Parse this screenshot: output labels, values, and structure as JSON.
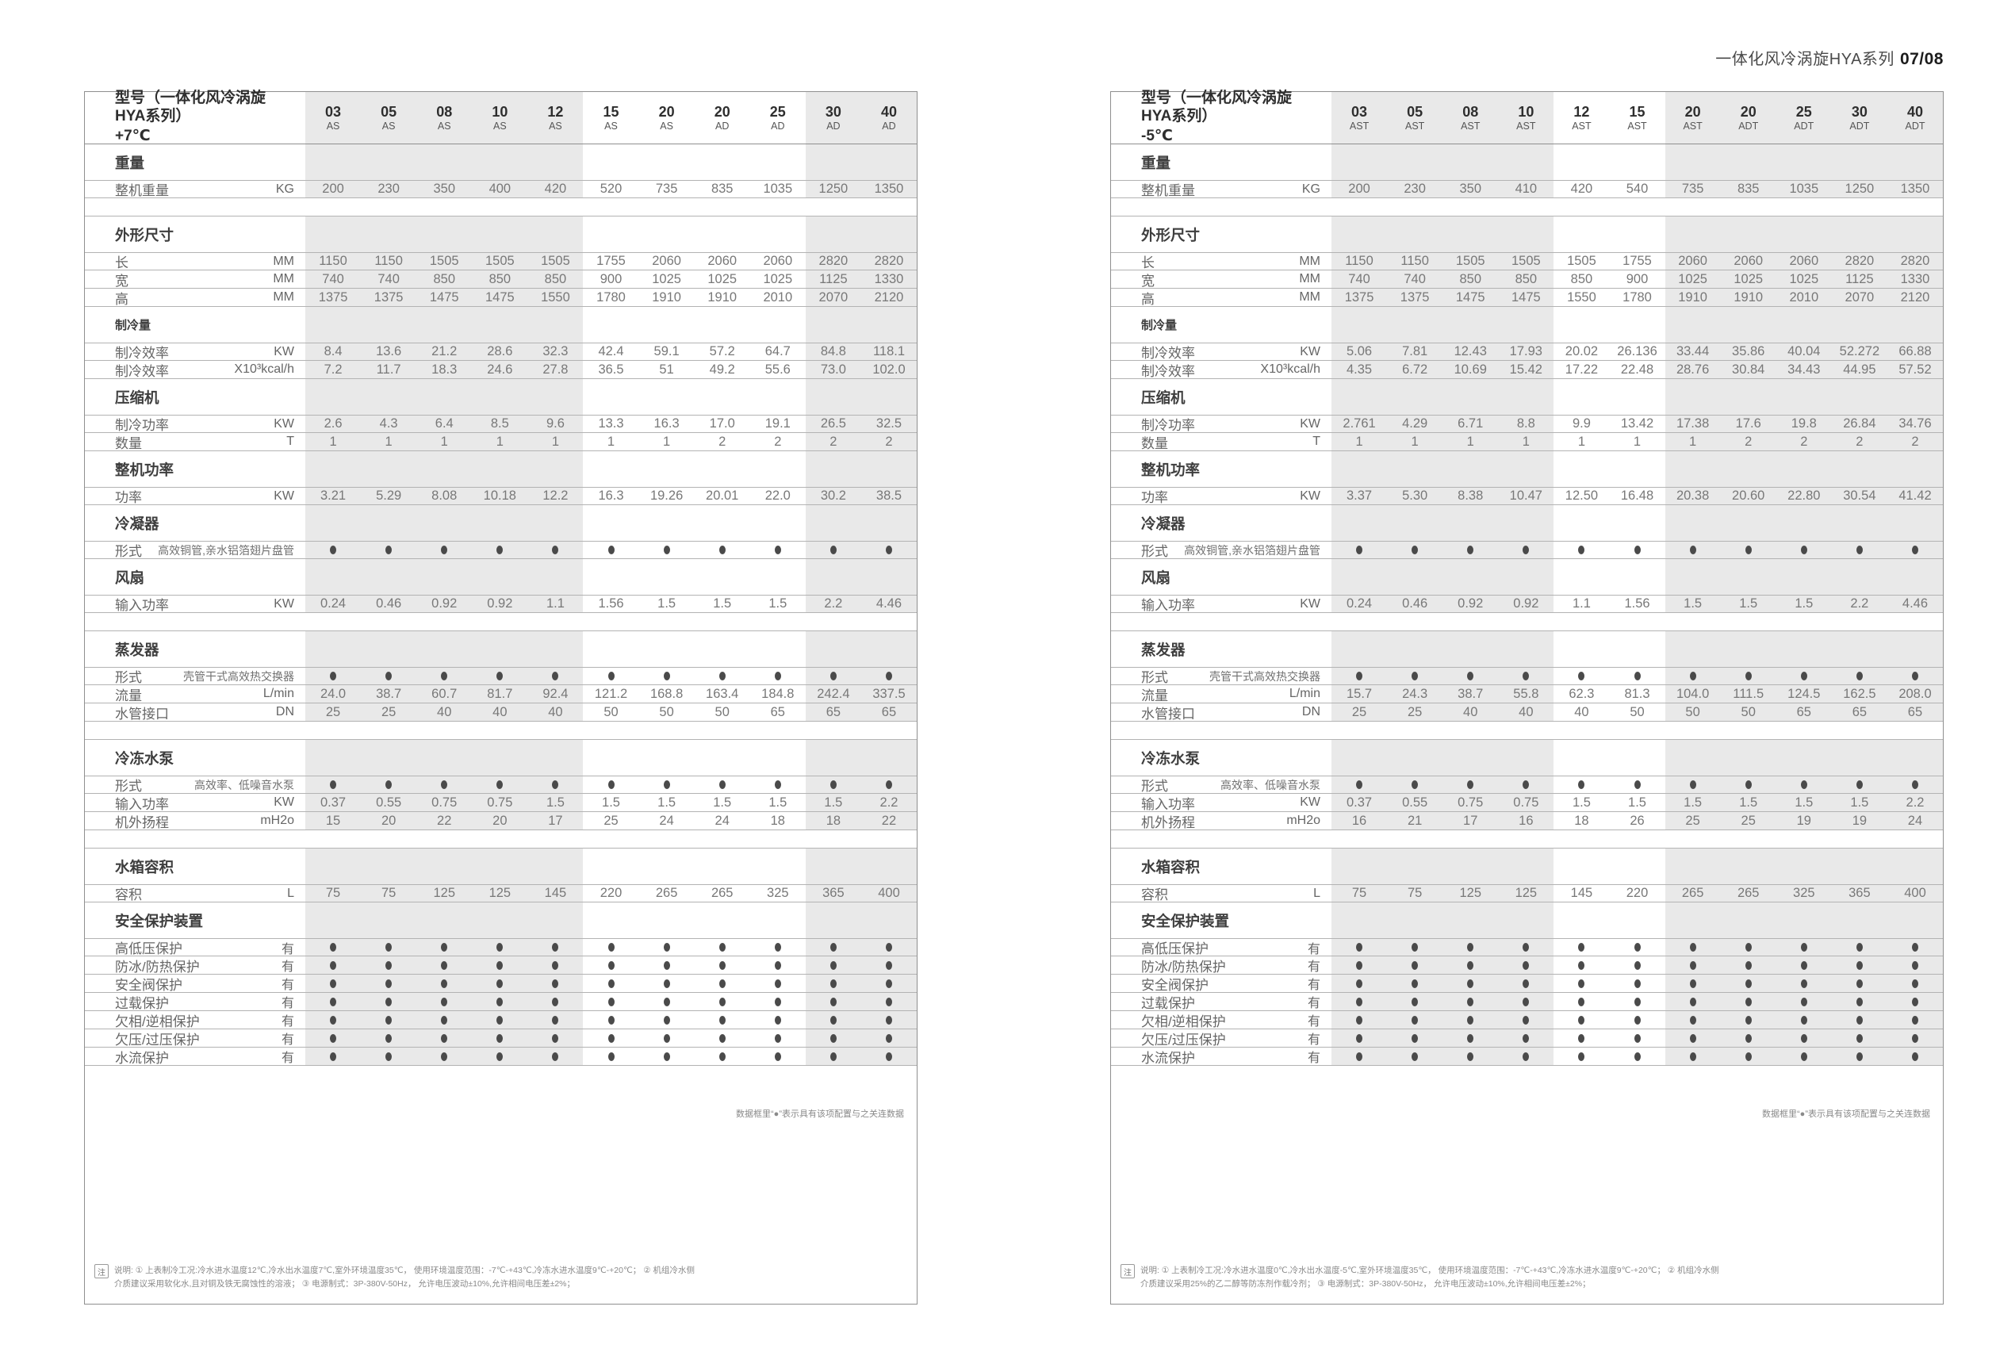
{
  "page": {
    "title_series": "一体化风冷涡旋HYA系列",
    "title_page": "07/08"
  },
  "tables": [
    {
      "id": "plus7",
      "title": "型号（一体化风冷涡旋HYA系列）",
      "temp": "+7℃",
      "columns": [
        {
          "size": "03",
          "type": "AS"
        },
        {
          "size": "05",
          "type": "AS"
        },
        {
          "size": "08",
          "type": "AS"
        },
        {
          "size": "10",
          "type": "AS"
        },
        {
          "size": "12",
          "type": "AS"
        },
        {
          "size": "15",
          "type": "AS"
        },
        {
          "size": "20",
          "type": "AS"
        },
        {
          "size": "20",
          "type": "AD"
        },
        {
          "size": "25",
          "type": "AD"
        },
        {
          "size": "30",
          "type": "AD"
        },
        {
          "size": "40",
          "type": "AD"
        }
      ],
      "band_columns": [
        0,
        1,
        2,
        3,
        4,
        9,
        10
      ],
      "rows": [
        {
          "type": "section",
          "label": "重量"
        },
        {
          "type": "value",
          "label": "整机重量",
          "unit": "KG",
          "values": [
            "200",
            "230",
            "350",
            "400",
            "420",
            "520",
            "735",
            "835",
            "1035",
            "1250",
            "1350"
          ]
        },
        {
          "type": "gap"
        },
        {
          "type": "section",
          "label": "外形尺寸"
        },
        {
          "type": "value",
          "label": "长",
          "unit": "MM",
          "values": [
            "1150",
            "1150",
            "1505",
            "1505",
            "1505",
            "1755",
            "2060",
            "2060",
            "2060",
            "2820",
            "2820"
          ]
        },
        {
          "type": "value",
          "label": "宽",
          "unit": "MM",
          "values": [
            "740",
            "740",
            "850",
            "850",
            "850",
            "900",
            "1025",
            "1025",
            "1025",
            "1125",
            "1330"
          ]
        },
        {
          "type": "value",
          "label": "高",
          "unit": "MM",
          "values": [
            "1375",
            "1375",
            "1475",
            "1475",
            "1550",
            "1780",
            "1910",
            "1910",
            "2010",
            "2070",
            "2120"
          ]
        },
        {
          "type": "section",
          "label": "制冷量",
          "small": true
        },
        {
          "type": "value",
          "label": "制冷效率",
          "unit": "KW",
          "values": [
            "8.4",
            "13.6",
            "21.2",
            "28.6",
            "32.3",
            "42.4",
            "59.1",
            "57.2",
            "64.7",
            "84.8",
            "118.1"
          ]
        },
        {
          "type": "value",
          "label": "制冷效率",
          "unit": "X10³kcal/h",
          "values": [
            "7.2",
            "11.7",
            "18.3",
            "24.6",
            "27.8",
            "36.5",
            "51",
            "49.2",
            "55.6",
            "73.0",
            "102.0"
          ]
        },
        {
          "type": "section",
          "label": "压缩机"
        },
        {
          "type": "value",
          "label": "制冷功率",
          "unit": "KW",
          "values": [
            "2.6",
            "4.3",
            "6.4",
            "8.5",
            "9.6",
            "13.3",
            "16.3",
            "17.0",
            "19.1",
            "26.5",
            "32.5"
          ]
        },
        {
          "type": "value",
          "label": "数量",
          "unit": "T",
          "values": [
            "1",
            "1",
            "1",
            "1",
            "1",
            "1",
            "1",
            "2",
            "2",
            "2",
            "2"
          ]
        },
        {
          "type": "section",
          "label": "整机功率"
        },
        {
          "type": "value",
          "label": "功率",
          "unit": "KW",
          "values": [
            "3.21",
            "5.29",
            "8.08",
            "10.18",
            "12.2",
            "16.3",
            "19.26",
            "20.01",
            "22.0",
            "30.2",
            "38.5"
          ]
        },
        {
          "type": "section",
          "label": "冷凝器"
        },
        {
          "type": "dots",
          "label": "形式",
          "unit": "高效铜管,亲水铝箔翅片盘管",
          "small_unit": true
        },
        {
          "type": "section",
          "label": "风扇"
        },
        {
          "type": "value",
          "label": "输入功率",
          "unit": "KW",
          "values": [
            "0.24",
            "0.46",
            "0.92",
            "0.92",
            "1.1",
            "1.56",
            "1.5",
            "1.5",
            "1.5",
            "2.2",
            "4.46"
          ]
        },
        {
          "type": "gap"
        },
        {
          "type": "section",
          "label": "蒸发器"
        },
        {
          "type": "dots",
          "label": "形式",
          "unit": "壳管干式高效热交换器",
          "small_unit": true
        },
        {
          "type": "value",
          "label": "流量",
          "unit": "L/min",
          "values": [
            "24.0",
            "38.7",
            "60.7",
            "81.7",
            "92.4",
            "121.2",
            "168.8",
            "163.4",
            "184.8",
            "242.4",
            "337.5"
          ]
        },
        {
          "type": "value",
          "label": "水管接口",
          "unit": "DN",
          "values": [
            "25",
            "25",
            "40",
            "40",
            "40",
            "50",
            "50",
            "50",
            "65",
            "65",
            "65"
          ]
        },
        {
          "type": "gap"
        },
        {
          "type": "section",
          "label": "冷冻水泵"
        },
        {
          "type": "dots",
          "label": "形式",
          "unit": "高效率、低噪音水泵",
          "small_unit": true
        },
        {
          "type": "value",
          "label": "输入功率",
          "unit": "KW",
          "values": [
            "0.37",
            "0.55",
            "0.75",
            "0.75",
            "1.5",
            "1.5",
            "1.5",
            "1.5",
            "1.5",
            "1.5",
            "2.2"
          ]
        },
        {
          "type": "value",
          "label": "机外扬程",
          "unit": "mH2o",
          "values": [
            "15",
            "20",
            "22",
            "20",
            "17",
            "25",
            "24",
            "24",
            "18",
            "18",
            "22"
          ]
        },
        {
          "type": "gap"
        },
        {
          "type": "section",
          "label": "水箱容积"
        },
        {
          "type": "value",
          "label": "容积",
          "unit": "L",
          "values": [
            "75",
            "75",
            "125",
            "125",
            "145",
            "220",
            "265",
            "265",
            "325",
            "365",
            "400"
          ]
        },
        {
          "type": "section",
          "label": "安全保护装置"
        },
        {
          "type": "dots",
          "label": "高低压保护",
          "unit": "有"
        },
        {
          "type": "dots",
          "label": "防冰/防热保护",
          "unit": "有"
        },
        {
          "type": "dots",
          "label": "安全阀保护",
          "unit": "有"
        },
        {
          "type": "dots",
          "label": "过载保护",
          "unit": "有"
        },
        {
          "type": "dots",
          "label": "欠相/逆相保护",
          "unit": "有"
        },
        {
          "type": "dots",
          "label": "欠压/过压保护",
          "unit": "有"
        },
        {
          "type": "dots",
          "label": "水流保护",
          "unit": "有"
        }
      ],
      "note": "数据框里“●”表示具有该项配置与之关连数据",
      "note_icon": "注",
      "footnote_lines": [
        "说明: ① 上表制冷工况:冷水进水温度12℃,冷水出水温度7℃,室外环境温度35℃， 使用环境温度范围：-7℃-+43℃,冷冻水进水温度9℃-+20℃； ② 机组冷水侧",
        "介质建议采用软化水,且对铜及铁无腐蚀性的溶液； ③ 电源制式：3P-380V-50Hz， 允许电压波动±10%,允许相间电压差±2%；"
      ]
    },
    {
      "id": "minus5",
      "title": "型号（一体化风冷涡旋HYA系列）",
      "temp": "-5℃",
      "columns": [
        {
          "size": "03",
          "type": "AST"
        },
        {
          "size": "05",
          "type": "AST"
        },
        {
          "size": "08",
          "type": "AST"
        },
        {
          "size": "10",
          "type": "AST"
        },
        {
          "size": "12",
          "type": "AST"
        },
        {
          "size": "15",
          "type": "AST"
        },
        {
          "size": "20",
          "type": "AST"
        },
        {
          "size": "20",
          "type": "ADT"
        },
        {
          "size": "25",
          "type": "ADT"
        },
        {
          "size": "30",
          "type": "ADT"
        },
        {
          "size": "40",
          "type": "ADT"
        }
      ],
      "band_columns": [
        0,
        1,
        2,
        3,
        6,
        7,
        8,
        9,
        10
      ],
      "rows": [
        {
          "type": "section",
          "label": "重量"
        },
        {
          "type": "value",
          "label": "整机重量",
          "unit": "KG",
          "values": [
            "200",
            "230",
            "350",
            "410",
            "420",
            "540",
            "735",
            "835",
            "1035",
            "1250",
            "1350"
          ]
        },
        {
          "type": "gap"
        },
        {
          "type": "section",
          "label": "外形尺寸"
        },
        {
          "type": "value",
          "label": "长",
          "unit": "MM",
          "values": [
            "1150",
            "1150",
            "1505",
            "1505",
            "1505",
            "1755",
            "2060",
            "2060",
            "2060",
            "2820",
            "2820"
          ]
        },
        {
          "type": "value",
          "label": "宽",
          "unit": "MM",
          "values": [
            "740",
            "740",
            "850",
            "850",
            "850",
            "900",
            "1025",
            "1025",
            "1025",
            "1125",
            "1330"
          ]
        },
        {
          "type": "value",
          "label": "高",
          "unit": "MM",
          "values": [
            "1375",
            "1375",
            "1475",
            "1475",
            "1550",
            "1780",
            "1910",
            "1910",
            "2010",
            "2070",
            "2120"
          ]
        },
        {
          "type": "section",
          "label": "制冷量",
          "small": true
        },
        {
          "type": "value",
          "label": "制冷效率",
          "unit": "KW",
          "values": [
            "5.06",
            "7.81",
            "12.43",
            "17.93",
            "20.02",
            "26.136",
            "33.44",
            "35.86",
            "40.04",
            "52.272",
            "66.88"
          ]
        },
        {
          "type": "value",
          "label": "制冷效率",
          "unit": "X10³kcal/h",
          "values": [
            "4.35",
            "6.72",
            "10.69",
            "15.42",
            "17.22",
            "22.48",
            "28.76",
            "30.84",
            "34.43",
            "44.95",
            "57.52"
          ]
        },
        {
          "type": "section",
          "label": "压缩机"
        },
        {
          "type": "value",
          "label": "制冷功率",
          "unit": "KW",
          "values": [
            "2.761",
            "4.29",
            "6.71",
            "8.8",
            "9.9",
            "13.42",
            "17.38",
            "17.6",
            "19.8",
            "26.84",
            "34.76"
          ]
        },
        {
          "type": "value",
          "label": "数量",
          "unit": "T",
          "values": [
            "1",
            "1",
            "1",
            "1",
            "1",
            "1",
            "1",
            "2",
            "2",
            "2",
            "2"
          ]
        },
        {
          "type": "section",
          "label": "整机功率"
        },
        {
          "type": "value",
          "label": "功率",
          "unit": "KW",
          "values": [
            "3.37",
            "5.30",
            "8.38",
            "10.47",
            "12.50",
            "16.48",
            "20.38",
            "20.60",
            "22.80",
            "30.54",
            "41.42"
          ]
        },
        {
          "type": "section",
          "label": "冷凝器"
        },
        {
          "type": "dots",
          "label": "形式",
          "unit": "高效铜管,亲水铝箔翅片盘管",
          "small_unit": true
        },
        {
          "type": "section",
          "label": "风扇"
        },
        {
          "type": "value",
          "label": "输入功率",
          "unit": "KW",
          "values": [
            "0.24",
            "0.46",
            "0.92",
            "0.92",
            "1.1",
            "1.56",
            "1.5",
            "1.5",
            "1.5",
            "2.2",
            "4.46"
          ]
        },
        {
          "type": "gap"
        },
        {
          "type": "section",
          "label": "蒸发器"
        },
        {
          "type": "dots",
          "label": "形式",
          "unit": "壳管干式高效热交换器",
          "small_unit": true
        },
        {
          "type": "value",
          "label": "流量",
          "unit": "L/min",
          "values": [
            "15.7",
            "24.3",
            "38.7",
            "55.8",
            "62.3",
            "81.3",
            "104.0",
            "111.5",
            "124.5",
            "162.5",
            "208.0"
          ]
        },
        {
          "type": "value",
          "label": "水管接口",
          "unit": "DN",
          "values": [
            "25",
            "25",
            "40",
            "40",
            "40",
            "50",
            "50",
            "50",
            "65",
            "65",
            "65"
          ]
        },
        {
          "type": "gap"
        },
        {
          "type": "section",
          "label": "冷冻水泵"
        },
        {
          "type": "dots",
          "label": "形式",
          "unit": "高效率、低噪音水泵",
          "small_unit": true
        },
        {
          "type": "value",
          "label": "输入功率",
          "unit": "KW",
          "values": [
            "0.37",
            "0.55",
            "0.75",
            "0.75",
            "1.5",
            "1.5",
            "1.5",
            "1.5",
            "1.5",
            "1.5",
            "2.2"
          ]
        },
        {
          "type": "value",
          "label": "机外扬程",
          "unit": "mH2o",
          "values": [
            "16",
            "21",
            "17",
            "16",
            "18",
            "26",
            "25",
            "25",
            "19",
            "19",
            "24"
          ]
        },
        {
          "type": "gap"
        },
        {
          "type": "section",
          "label": "水箱容积"
        },
        {
          "type": "value",
          "label": "容积",
          "unit": "L",
          "values": [
            "75",
            "75",
            "125",
            "125",
            "145",
            "220",
            "265",
            "265",
            "325",
            "365",
            "400"
          ]
        },
        {
          "type": "section",
          "label": "安全保护装置"
        },
        {
          "type": "dots",
          "label": "高低压保护",
          "unit": "有"
        },
        {
          "type": "dots",
          "label": "防冰/防热保护",
          "unit": "有"
        },
        {
          "type": "dots",
          "label": "安全阀保护",
          "unit": "有"
        },
        {
          "type": "dots",
          "label": "过载保护",
          "unit": "有"
        },
        {
          "type": "dots",
          "label": "欠相/逆相保护",
          "unit": "有"
        },
        {
          "type": "dots",
          "label": "欠压/过压保护",
          "unit": "有"
        },
        {
          "type": "dots",
          "label": "水流保护",
          "unit": "有"
        }
      ],
      "note": "数据框里“●”表示具有该项配置与之关连数据",
      "note_icon": "注",
      "footnote_lines": [
        "说明: ① 上表制冷工况:冷水进水温度0℃,冷水出水温度-5℃,室外环境温度35℃， 使用环境温度范围：-7℃-+43℃,冷冻水进水温度9℃-+20℃； ② 机组冷水侧",
        "介质建议采用25%的乙二醇等防冻剂作载冷剂； ③ 电源制式：3P-380V-50Hz， 允许电压波动±10%,允许相间电压差±2%；"
      ]
    }
  ]
}
